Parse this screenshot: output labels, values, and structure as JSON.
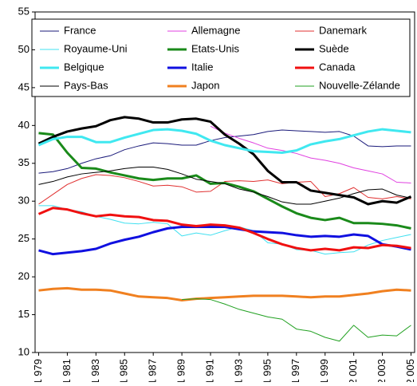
{
  "chart_data": {
    "type": "line",
    "x": [
      1979,
      1980,
      1981,
      1982,
      1983,
      1984,
      1985,
      1986,
      1987,
      1988,
      1989,
      1990,
      1991,
      1992,
      1993,
      1994,
      1995,
      1996,
      1997,
      1998,
      1999,
      2000,
      2001,
      2002,
      2003,
      2004,
      2005
    ],
    "xlim": [
      1978.75,
      2005.25
    ],
    "xticks": [
      {
        "value": 1979,
        "label": "1 979"
      },
      {
        "value": 1981,
        "label": "1 981"
      },
      {
        "value": 1983,
        "label": "1 983"
      },
      {
        "value": 1985,
        "label": "1 985"
      },
      {
        "value": 1987,
        "label": "1 987"
      },
      {
        "value": 1989,
        "label": "1 989"
      },
      {
        "value": 1991,
        "label": "1 991"
      },
      {
        "value": 1993,
        "label": "1 993"
      },
      {
        "value": 1995,
        "label": "1 995"
      },
      {
        "value": 1997,
        "label": "1 997"
      },
      {
        "value": 1999,
        "label": "1 999"
      },
      {
        "value": 2001,
        "label": "2 001"
      },
      {
        "value": 2003,
        "label": "2 003"
      },
      {
        "value": 2005,
        "label": "2 005"
      }
    ],
    "ylim": [
      10,
      55
    ],
    "yticks": [
      10,
      15,
      20,
      25,
      30,
      35,
      40,
      45,
      50,
      55
    ],
    "series": [
      {
        "name": "France",
        "color": "#1a1a7a",
        "linewidth": 1,
        "values": [
          33.7,
          33.9,
          34.3,
          35.0,
          35.6,
          36.0,
          36.8,
          37.3,
          37.7,
          37.6,
          37.4,
          37.4,
          38.0,
          38.4,
          38.6,
          38.8,
          39.2,
          39.4,
          39.3,
          39.2,
          39.1,
          39.2,
          38.6,
          37.3,
          37.2,
          37.3,
          37.3
        ]
      },
      {
        "name": "Allemagne",
        "color": "#e040e0",
        "linewidth": 1,
        "values": [
          null,
          null,
          null,
          null,
          null,
          null,
          null,
          null,
          null,
          null,
          null,
          null,
          39.9,
          39.0,
          38.3,
          37.7,
          37.0,
          36.7,
          36.3,
          35.7,
          35.4,
          35.0,
          34.4,
          34.0,
          33.6,
          32.5,
          32.4
        ]
      },
      {
        "name": "Danemark",
        "color": "#e03030",
        "linewidth": 1,
        "values": [
          29.6,
          30.9,
          32.2,
          33.0,
          33.5,
          33.4,
          33.1,
          32.6,
          32.0,
          32.1,
          31.9,
          31.2,
          31.3,
          32.6,
          32.7,
          32.6,
          32.8,
          32.3,
          32.5,
          32.6,
          30.6,
          31.0,
          31.8,
          30.5,
          30.3,
          30.6,
          30.3
        ]
      },
      {
        "name": "Royaume-Uni",
        "color": "#40e0f0",
        "linewidth": 1,
        "values": [
          29.4,
          29.4,
          28.9,
          28.6,
          28.0,
          27.6,
          27.1,
          27.0,
          27.2,
          27.0,
          25.4,
          25.8,
          25.5,
          26.1,
          26.6,
          26.1,
          24.5,
          24.3,
          23.6,
          23.5,
          23.0,
          23.2,
          23.3,
          24.2,
          24.8,
          25.2,
          25.6
        ]
      },
      {
        "name": "Etats-Unis",
        "color": "#1a8a1a",
        "linewidth": 3,
        "values": [
          39.0,
          38.8,
          36.4,
          34.4,
          34.3,
          33.8,
          33.4,
          33.0,
          32.8,
          33.0,
          33.0,
          33.4,
          32.3,
          32.4,
          31.9,
          31.3,
          30.3,
          29.3,
          28.4,
          27.8,
          27.5,
          27.8,
          27.1,
          27.1,
          27.0,
          26.8,
          26.4
        ]
      },
      {
        "name": "Suède",
        "color": "#000000",
        "linewidth": 3,
        "values": [
          37.6,
          38.5,
          39.2,
          39.6,
          39.9,
          40.7,
          41.1,
          40.9,
          40.4,
          40.4,
          40.8,
          40.9,
          40.5,
          38.8,
          37.6,
          36.2,
          34.0,
          32.5,
          32.5,
          31.4,
          31.1,
          30.8,
          30.5,
          29.6,
          30.0,
          29.8,
          30.6
        ]
      },
      {
        "name": "Belgique",
        "color": "#40e8f0",
        "linewidth": 3,
        "values": [
          37.4,
          38.2,
          38.5,
          38.5,
          37.8,
          37.8,
          38.4,
          38.9,
          39.4,
          39.5,
          39.3,
          38.9,
          38.0,
          37.4,
          37.0,
          36.6,
          36.5,
          36.4,
          36.7,
          37.5,
          37.9,
          38.2,
          38.7,
          39.2,
          39.5,
          39.3,
          39.1
        ]
      },
      {
        "name": "Italie",
        "color": "#1010e0",
        "linewidth": 3,
        "values": [
          23.5,
          23.0,
          23.2,
          23.4,
          23.7,
          24.4,
          24.9,
          25.3,
          25.9,
          26.4,
          26.6,
          26.6,
          26.6,
          26.6,
          26.3,
          26.0,
          25.9,
          25.8,
          25.5,
          25.3,
          25.4,
          25.3,
          25.6,
          25.4,
          24.3,
          24.0,
          23.6
        ]
      },
      {
        "name": "Canada",
        "color": "#f01010",
        "linewidth": 3,
        "values": [
          28.3,
          29.1,
          28.9,
          28.4,
          28.0,
          28.2,
          28.0,
          27.9,
          27.5,
          27.4,
          26.9,
          26.7,
          26.9,
          26.8,
          26.5,
          25.8,
          25.0,
          24.3,
          23.8,
          23.5,
          23.7,
          23.5,
          23.9,
          23.8,
          24.2,
          24.1,
          23.8
        ]
      },
      {
        "name": "Pays-Bas",
        "color": "#000000",
        "linewidth": 1,
        "values": [
          32.2,
          32.6,
          33.2,
          33.6,
          33.8,
          34.0,
          34.3,
          34.5,
          34.5,
          34.2,
          33.6,
          32.9,
          32.6,
          32.3,
          31.6,
          31.2,
          30.6,
          29.9,
          29.6,
          29.6,
          30.0,
          30.4,
          31.0,
          31.5,
          31.6,
          30.8,
          30.4
        ]
      },
      {
        "name": "Japon",
        "color": "#f08020",
        "linewidth": 3,
        "values": [
          18.2,
          18.4,
          18.5,
          18.3,
          18.3,
          18.2,
          17.8,
          17.4,
          17.3,
          17.2,
          16.9,
          17.1,
          17.2,
          17.3,
          17.4,
          17.5,
          17.5,
          17.5,
          17.4,
          17.3,
          17.4,
          17.4,
          17.6,
          17.8,
          18.1,
          18.3,
          18.2
        ]
      },
      {
        "name": "Nouvelle-Zélande",
        "color": "#20a020",
        "linewidth": 1,
        "values": [
          null,
          null,
          null,
          null,
          null,
          null,
          null,
          null,
          null,
          null,
          17.0,
          17.1,
          17.0,
          16.4,
          15.7,
          15.2,
          14.7,
          14.4,
          13.1,
          12.8,
          12.0,
          11.5,
          13.6,
          12.0,
          12.3,
          12.2,
          13.6
        ]
      }
    ]
  }
}
